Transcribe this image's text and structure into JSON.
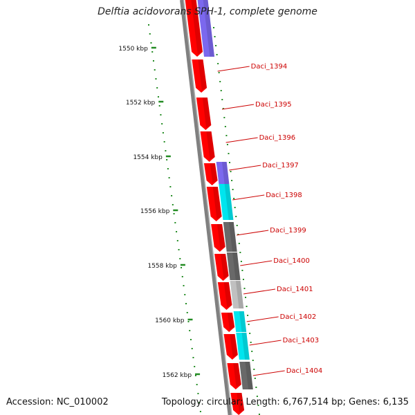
{
  "title": "Delftia acidovorans SPH-1, complete genome",
  "footer": {
    "accession": "Accession: NC_010002",
    "topology": "Topology: circular; Length: 6,767,514 bp; Genes: 6,135"
  },
  "colors": {
    "forward_cds": "#ff0000",
    "other_feature": "#7b68ee",
    "cyan_feature": "#00e5ee",
    "dark_gray_feature": "#696969",
    "light_gray_feature": "#c0c0c0",
    "gene_label": "#cc0000",
    "tick": "#228b22",
    "backbone": "#808080"
  },
  "scale_labels": [
    "1550 kbp",
    "1552 kbp",
    "1554 kbp",
    "1556 kbp",
    "1558 kbp",
    "1560 kbp",
    "1562 kbp"
  ],
  "genes": [
    "Daci_1394",
    "Daci_1395",
    "Daci_1396",
    "Daci_1397",
    "Daci_1398",
    "Daci_1399",
    "Daci_1400",
    "Daci_1401",
    "Daci_1402",
    "Daci_1403",
    "Daci_1404"
  ]
}
